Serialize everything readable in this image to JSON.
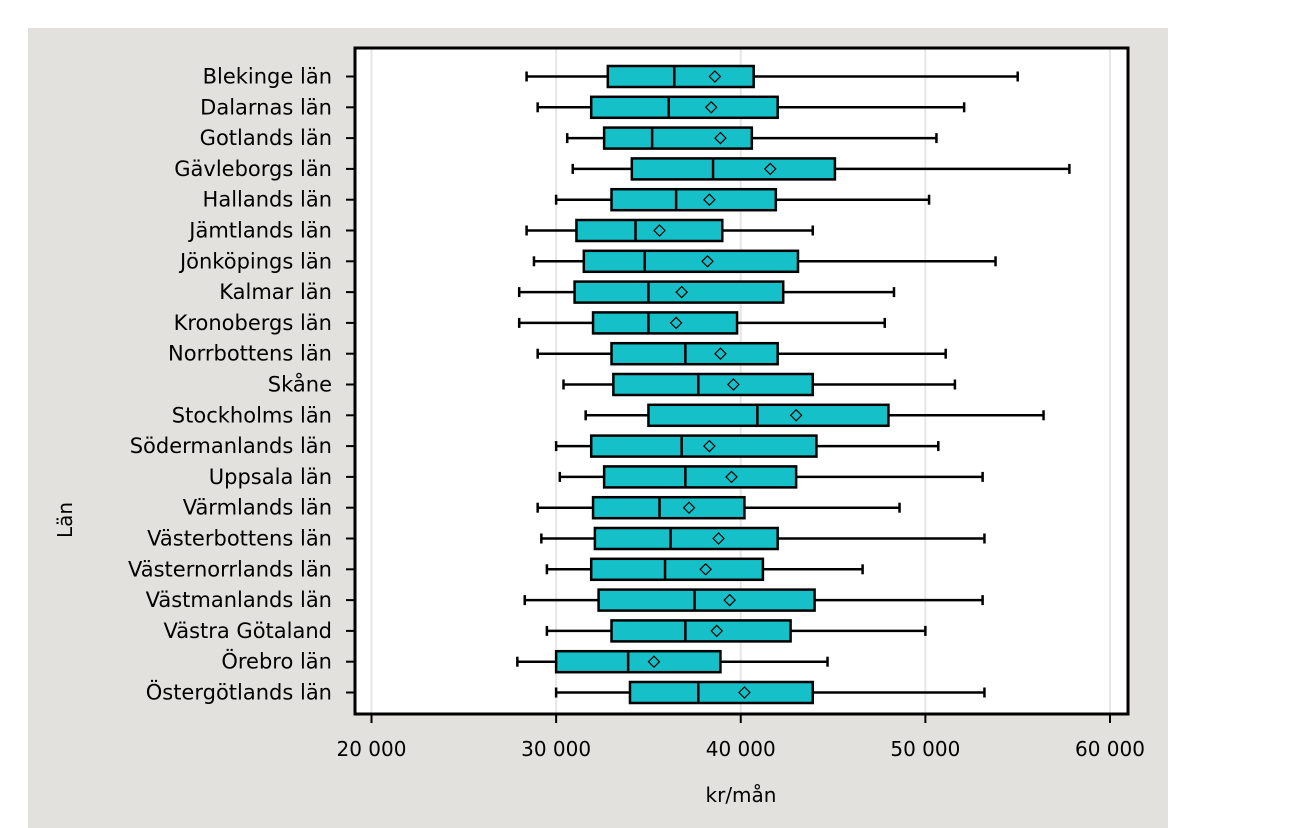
{
  "chart_data": {
    "type": "boxplot",
    "orientation": "horizontal",
    "xlabel": "kr/mån",
    "ylabel": "Län",
    "xlim": [
      19000,
      61000
    ],
    "xticks": [
      20000,
      30000,
      40000,
      50000,
      60000
    ],
    "xtick_labels": [
      "20 000",
      "30 000",
      "40 000",
      "50 000",
      "60 000"
    ],
    "grid": "vertical",
    "box_color": "#16c0c8",
    "categories": [
      "Blekinge län",
      "Dalarnas län",
      "Gotlands län",
      "Gävleborgs län",
      "Hallands län",
      "Jämtlands län",
      "Jönköpings län",
      "Kalmar län",
      "Kronobergs län",
      "Norrbottens län",
      "Skåne",
      "Stockholms län",
      "Södermanlands län",
      "Uppsala län",
      "Värmlands län",
      "Västerbottens län",
      "Västernorrlands län",
      "Västmanlands län",
      "Västra Götaland",
      "Örebro län",
      "Östergötlands län"
    ],
    "boxes": [
      {
        "min": 28400,
        "q1": 32800,
        "median": 36400,
        "q3": 40700,
        "max": 55000,
        "mean": 38600
      },
      {
        "min": 29000,
        "q1": 31900,
        "median": 36100,
        "q3": 42000,
        "max": 52100,
        "mean": 38400
      },
      {
        "min": 30600,
        "q1": 32600,
        "median": 35200,
        "q3": 40600,
        "max": 50600,
        "mean": 38900
      },
      {
        "min": 30900,
        "q1": 34100,
        "median": 38500,
        "q3": 45100,
        "max": 57800,
        "mean": 41600
      },
      {
        "min": 30000,
        "q1": 33000,
        "median": 36500,
        "q3": 41900,
        "max": 50200,
        "mean": 38300
      },
      {
        "min": 28400,
        "q1": 31100,
        "median": 34300,
        "q3": 39000,
        "max": 43900,
        "mean": 35600
      },
      {
        "min": 28800,
        "q1": 31500,
        "median": 34800,
        "q3": 43100,
        "max": 53800,
        "mean": 38200
      },
      {
        "min": 28000,
        "q1": 31000,
        "median": 35000,
        "q3": 42300,
        "max": 48300,
        "mean": 36800
      },
      {
        "min": 28000,
        "q1": 32000,
        "median": 35000,
        "q3": 39800,
        "max": 47800,
        "mean": 36500
      },
      {
        "min": 29000,
        "q1": 33000,
        "median": 37000,
        "q3": 42000,
        "max": 51100,
        "mean": 38900
      },
      {
        "min": 30400,
        "q1": 33100,
        "median": 37700,
        "q3": 43900,
        "max": 51600,
        "mean": 39600
      },
      {
        "min": 31600,
        "q1": 35000,
        "median": 40900,
        "q3": 48000,
        "max": 56400,
        "mean": 43000
      },
      {
        "min": 30000,
        "q1": 31900,
        "median": 36800,
        "q3": 44100,
        "max": 50700,
        "mean": 38300
      },
      {
        "min": 30200,
        "q1": 32600,
        "median": 37000,
        "q3": 43000,
        "max": 53100,
        "mean": 39500
      },
      {
        "min": 29000,
        "q1": 32000,
        "median": 35600,
        "q3": 40200,
        "max": 48600,
        "mean": 37200
      },
      {
        "min": 29200,
        "q1": 32100,
        "median": 36200,
        "q3": 42000,
        "max": 53200,
        "mean": 38800
      },
      {
        "min": 29500,
        "q1": 31900,
        "median": 35900,
        "q3": 41200,
        "max": 46600,
        "mean": 38100
      },
      {
        "min": 28300,
        "q1": 32300,
        "median": 37500,
        "q3": 44000,
        "max": 53100,
        "mean": 39400
      },
      {
        "min": 29500,
        "q1": 33000,
        "median": 37000,
        "q3": 42700,
        "max": 50000,
        "mean": 38700
      },
      {
        "min": 27900,
        "q1": 30000,
        "median": 33900,
        "q3": 38900,
        "max": 44700,
        "mean": 35300
      },
      {
        "min": 30000,
        "q1": 34000,
        "median": 37700,
        "q3": 43900,
        "max": 53200,
        "mean": 40200
      }
    ]
  }
}
